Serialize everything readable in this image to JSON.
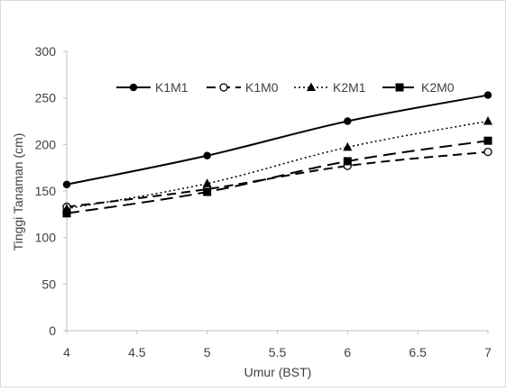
{
  "chart_data": {
    "type": "line",
    "title": "",
    "xlabel": "Umur (BST)",
    "ylabel": "Tinggi Tanaman (cm)",
    "xlim": [
      4,
      7
    ],
    "ylim": [
      0,
      300
    ],
    "x_ticks": [
      "4",
      "4.5",
      "5",
      "5.5",
      "6",
      "6.5",
      "7"
    ],
    "y_ticks": [
      "0",
      "50",
      "100",
      "150",
      "200",
      "250",
      "300"
    ],
    "grid": false,
    "legend_position": "top",
    "x": [
      4,
      5,
      6,
      7
    ],
    "series": [
      {
        "name": "K1M1",
        "values": [
          157,
          188,
          225,
          253
        ],
        "line": "solid",
        "marker": "circle-filled",
        "color": "#000000"
      },
      {
        "name": "K1M0",
        "values": [
          133,
          152,
          177,
          192
        ],
        "line": "dashed",
        "marker": "circle-open",
        "color": "#000000"
      },
      {
        "name": "K2M1",
        "values": [
          131,
          158,
          197,
          225
        ],
        "line": "dotted",
        "marker": "triangle",
        "color": "#000000"
      },
      {
        "name": "K2M0",
        "values": [
          126,
          149,
          182,
          204
        ],
        "line": "longdash",
        "marker": "square",
        "color": "#000000"
      }
    ]
  }
}
